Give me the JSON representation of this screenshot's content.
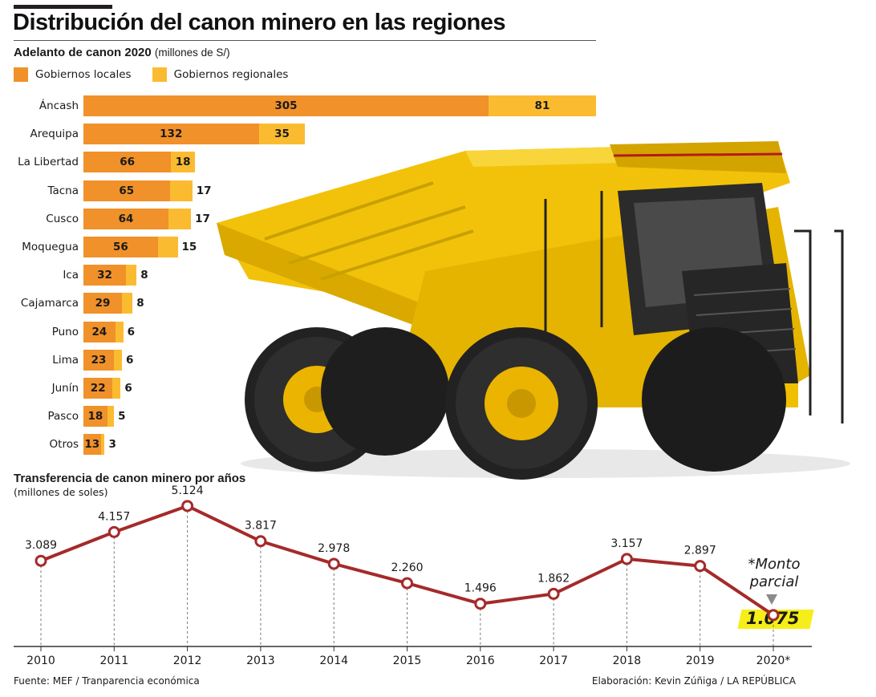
{
  "header": {
    "title": "Distribución del canon minero en las regiones"
  },
  "bar_section": {
    "subtitle": "Adelanto de canon 2020",
    "unit": "(millones de S/)",
    "legend": [
      "Gobiernos locales",
      "Gobiernos regionales"
    ]
  },
  "line_section": {
    "subtitle": "Transferencia de canon minero por años",
    "unit": "(millones de soles)",
    "note_line1": "*Monto",
    "note_line2": "parcial",
    "highlight_value": "1.075"
  },
  "footer": {
    "source": "Fuente: MEF / Tranparencia económica",
    "credit": "Elaboración: Kevin Zúñiga / LA REPÚBLICA"
  },
  "colors": {
    "local": "#f0912a",
    "regional": "#fbbb31",
    "line": "#a52a2a",
    "highlight": "#f5ee18"
  },
  "chart_data": [
    {
      "type": "bar",
      "orientation": "horizontal",
      "stacked": true,
      "categories": [
        "Áncash",
        "Arequipa",
        "La Libertad",
        "Tacna",
        "Cusco",
        "Moquegua",
        "Ica",
        "Cajamarca",
        "Puno",
        "Lima",
        "Junín",
        "Pasco",
        "Otros"
      ],
      "series": [
        {
          "name": "Gobiernos locales",
          "values": [
            305,
            132,
            66,
            65,
            64,
            56,
            32,
            29,
            24,
            23,
            22,
            18,
            13
          ]
        },
        {
          "name": "Gobiernos regionales",
          "values": [
            81,
            35,
            18,
            17,
            17,
            15,
            8,
            8,
            6,
            6,
            6,
            5,
            3
          ]
        }
      ],
      "legend": "top-left"
    },
    {
      "type": "line",
      "categories": [
        "2010",
        "2011",
        "2012",
        "2013",
        "2014",
        "2015",
        "2016",
        "2017",
        "2018",
        "2019",
        "2020*"
      ],
      "values": [
        3089,
        4157,
        5124,
        3817,
        2978,
        2260,
        1496,
        1862,
        3157,
        2897,
        1075
      ],
      "value_labels": [
        "3.089",
        "4.157",
        "5.124",
        "3.817",
        "2.978",
        "2.260",
        "1.496",
        "1.862",
        "3.157",
        "2.897",
        "1.075"
      ],
      "grid": "vertical dashed"
    }
  ]
}
